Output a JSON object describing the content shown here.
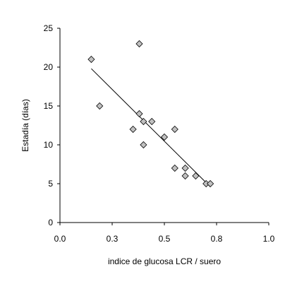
{
  "chart_data": {
    "type": "scatter",
    "title": "",
    "xlabel": "indice de glucosa LCR / suero",
    "ylabel": "Estadía (días)",
    "xlim": [
      0.0,
      1.0
    ],
    "ylim": [
      0,
      25
    ],
    "x_ticks": [
      0.0,
      0.25,
      0.5,
      0.75,
      1.0
    ],
    "x_tick_labels": [
      "0.0",
      "0.3",
      "0.5",
      "0.8",
      "1.0"
    ],
    "y_ticks": [
      0,
      5,
      10,
      15,
      20,
      25
    ],
    "y_tick_labels": [
      "0",
      "5",
      "10",
      "15",
      "20",
      "25"
    ],
    "grid": false,
    "legend": "none",
    "marker": "diamond",
    "marker_color": "#c0c0c0",
    "series": [
      {
        "points": [
          {
            "x": 0.15,
            "y": 21
          },
          {
            "x": 0.19,
            "y": 15
          },
          {
            "x": 0.35,
            "y": 12
          },
          {
            "x": 0.38,
            "y": 23
          },
          {
            "x": 0.38,
            "y": 14
          },
          {
            "x": 0.4,
            "y": 13
          },
          {
            "x": 0.4,
            "y": 10
          },
          {
            "x": 0.44,
            "y": 13
          },
          {
            "x": 0.5,
            "y": 11
          },
          {
            "x": 0.55,
            "y": 12
          },
          {
            "x": 0.55,
            "y": 7
          },
          {
            "x": 0.6,
            "y": 7
          },
          {
            "x": 0.6,
            "y": 6
          },
          {
            "x": 0.65,
            "y": 6
          },
          {
            "x": 0.7,
            "y": 5
          },
          {
            "x": 0.72,
            "y": 5
          }
        ]
      }
    ],
    "trendline": {
      "x": [
        0.15,
        0.72
      ],
      "y": [
        19.8,
        4.6
      ]
    }
  }
}
